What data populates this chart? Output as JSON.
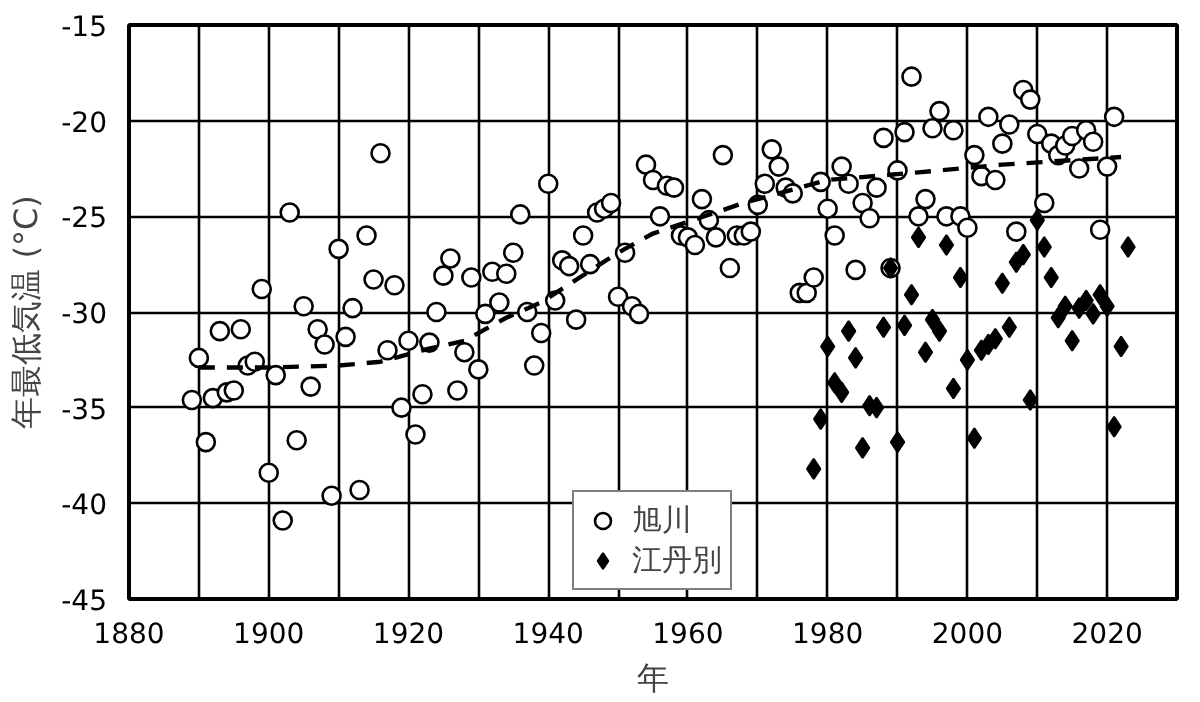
{
  "chart_data": {
    "type": "scatter",
    "xlabel": "年",
    "ylabel": "年最低気温 (°C)",
    "xlim": [
      1880,
      2030
    ],
    "ylim": [
      -45,
      -15
    ],
    "xticks": [
      1880,
      {
        "value": 1890,
        "label": null
      },
      1900,
      {
        "value": 1910,
        "label": null
      },
      1920,
      {
        "value": 1930,
        "label": null
      },
      1940,
      {
        "value": 1950,
        "label": null
      },
      1960,
      {
        "value": 1970,
        "label": null
      },
      1980,
      {
        "value": 1990,
        "label": null
      },
      2000,
      {
        "value": 2010,
        "label": null
      },
      2020,
      {
        "value": 2030,
        "label": null
      }
    ],
    "yticks": [
      -45,
      -40,
      -35,
      -30,
      -25,
      -20,
      -15
    ],
    "grid": true,
    "legend": "bottom",
    "series": [
      {
        "name": "旭川",
        "marker": "circle",
        "color": "#000000",
        "x": [
          1889,
          1890,
          1891,
          1892,
          1893,
          1894,
          1895,
          1896,
          1897,
          1898,
          1899,
          1900,
          1901,
          1902,
          1903,
          1904,
          1905,
          1906,
          1907,
          1908,
          1909,
          1910,
          1911,
          1912,
          1913,
          1914,
          1915,
          1916,
          1917,
          1918,
          1919,
          1920,
          1921,
          1922,
          1923,
          1924,
          1925,
          1926,
          1927,
          1928,
          1929,
          1930,
          1931,
          1932,
          1933,
          1934,
          1935,
          1936,
          1937,
          1938,
          1939,
          1940,
          1941,
          1942,
          1943,
          1944,
          1945,
          1946,
          1947,
          1948,
          1949,
          1950,
          1951,
          1952,
          1953,
          1954,
          1955,
          1956,
          1957,
          1958,
          1959,
          1960,
          1961,
          1962,
          1963,
          1964,
          1965,
          1966,
          1967,
          1968,
          1969,
          1970,
          1971,
          1972,
          1973,
          1974,
          1975,
          1976,
          1977,
          1978,
          1979,
          1980,
          1981,
          1982,
          1983,
          1984,
          1985,
          1986,
          1987,
          1988,
          1989,
          1990,
          1991,
          1992,
          1993,
          1994,
          1995,
          1996,
          1997,
          1998,
          1999,
          2000,
          2001,
          2002,
          2003,
          2004,
          2005,
          2006,
          2007,
          2008,
          2009,
          2010,
          2011,
          2012,
          2013,
          2014,
          2015,
          2016,
          2017,
          2018,
          2019,
          2020,
          2021
        ],
        "values": [
          -34.6,
          -32.4,
          -36.8,
          -34.5,
          -31.0,
          -34.2,
          -34.1,
          -30.9,
          -32.8,
          -32.6,
          -28.8,
          -38.4,
          -33.3,
          -40.9,
          -24.8,
          -36.7,
          -29.7,
          -33.9,
          -30.9,
          -31.7,
          -39.6,
          -26.7,
          -31.3,
          -29.8,
          -39.3,
          -26.0,
          -28.3,
          -21.7,
          -32.0,
          -28.6,
          -35.0,
          -31.5,
          -36.4,
          -34.3,
          -31.6,
          -30.0,
          -28.1,
          -27.2,
          -34.1,
          -32.1,
          -28.2,
          -33.0,
          -30.1,
          -27.9,
          -29.5,
          -28.0,
          -26.9,
          -24.9,
          -30.0,
          -32.8,
          -31.1,
          -23.3,
          -29.4,
          -27.3,
          -27.6,
          -30.4,
          -26.0,
          -27.5,
          -24.8,
          -24.6,
          -24.3,
          -29.2,
          -26.9,
          -29.7,
          -30.1,
          -22.3,
          -23.1,
          -25.0,
          -23.4,
          -23.5,
          -26.0,
          -26.1,
          -26.5,
          -24.1,
          -25.2,
          -26.1,
          -21.8,
          -27.7,
          -26.0,
          -26.0,
          -25.8,
          -24.4,
          -23.3,
          -21.5,
          -22.4,
          -23.5,
          -23.8,
          -29.0,
          -29.0,
          -28.2,
          -23.2,
          -24.6,
          -26.0,
          -22.4,
          -23.3,
          -27.8,
          -24.3,
          -25.1,
          -23.5,
          -20.9,
          -27.7,
          -22.6,
          -20.6,
          -17.7,
          -25.0,
          -24.1,
          -20.4,
          -19.5,
          -25.0,
          -20.5,
          -25.0,
          -25.6,
          -21.8,
          -22.9,
          -19.8,
          -23.1,
          -21.2,
          -20.2,
          -25.8,
          -18.4,
          -18.9,
          -20.7,
          -24.3,
          -21.2,
          -21.8,
          -21.3,
          -20.8,
          -22.5,
          -20.5,
          -21.1,
          -25.7,
          -22.4,
          -19.8
        ]
      },
      {
        "name": "江丹別",
        "marker": "diamond",
        "color": "#000000",
        "x": [
          1978,
          1979,
          1980,
          1981,
          1982,
          1983,
          1984,
          1985,
          1986,
          1987,
          1988,
          1989,
          1990,
          1991,
          1992,
          1993,
          1994,
          1995,
          1996,
          1997,
          1998,
          1999,
          2000,
          2001,
          2002,
          2003,
          2004,
          2005,
          2006,
          2007,
          2008,
          2009,
          2010,
          2011,
          2012,
          2013,
          2014,
          2015,
          2016,
          2017,
          2018,
          2019,
          2020,
          2021,
          2022,
          2023
        ],
        "values": [
          -38.2,
          -35.6,
          -31.8,
          -33.7,
          -34.2,
          -31.0,
          -32.4,
          -37.1,
          -34.9,
          -35.0,
          -30.8,
          -27.7,
          -36.8,
          -30.7,
          -29.1,
          -26.1,
          -32.1,
          -30.4,
          -31.0,
          -26.5,
          -34.0,
          -28.2,
          -32.5,
          -36.6,
          -32.0,
          -31.7,
          -31.4,
          -28.5,
          -30.8,
          -27.4,
          -27.0,
          -34.6,
          -25.2,
          -26.6,
          -28.2,
          -30.3,
          -29.7,
          -31.5,
          -29.8,
          -29.4,
          -30.1,
          -29.1,
          -29.7,
          -36.0,
          -31.8,
          -26.6
        ]
      },
      {
        "type": "line",
        "line_style": "dashed",
        "marker": "none",
        "color": "#000000",
        "x": [
          1890,
          1900,
          1910,
          1916,
          1922,
          1928,
          1934,
          1939,
          1950,
          1955,
          1968,
          1980,
          1993,
          2005,
          2022
        ],
        "values": [
          -32.9,
          -32.9,
          -32.8,
          -32.6,
          -32.0,
          -31.5,
          -30.3,
          -29.5,
          -26.9,
          -25.9,
          -24.3,
          -23.1,
          -22.7,
          -22.3,
          -21.9
        ]
      }
    ]
  }
}
